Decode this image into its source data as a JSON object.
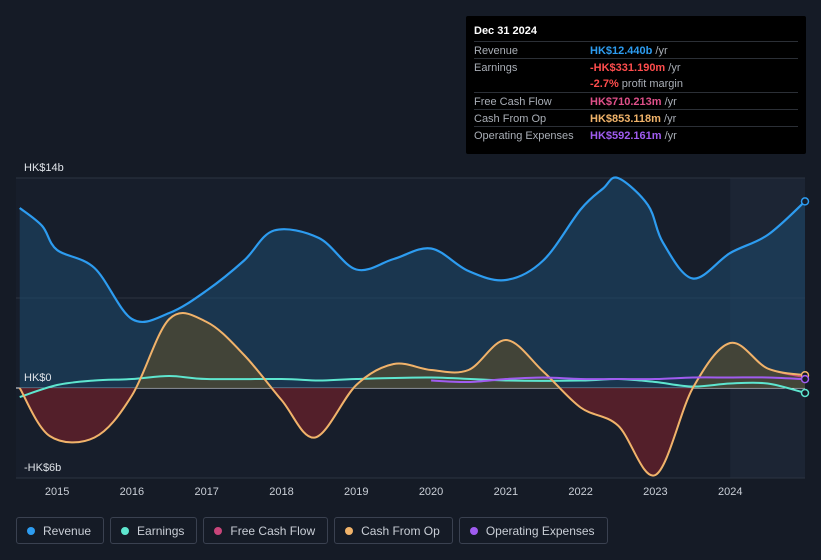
{
  "tooltip": {
    "date": "Dec 31 2024",
    "rows": [
      {
        "label": "Revenue",
        "value": "HK$12.440b",
        "unit": " /yr",
        "color": "#2d9cf0"
      },
      {
        "label": "Earnings",
        "value": "-HK$331.190m",
        "unit": " /yr",
        "color": "#ff4d4d"
      },
      {
        "label": "",
        "value": "-2.7%",
        "unit": " profit margin",
        "color": "#ff4d4d"
      },
      {
        "label": "Free Cash Flow",
        "value": "HK$710.213m",
        "unit": " /yr",
        "color": "#e0508a"
      },
      {
        "label": "Cash From Op",
        "value": "HK$853.118m",
        "unit": " /yr",
        "color": "#f0b36a"
      },
      {
        "label": "Operating Expenses",
        "value": "HK$592.161m",
        "unit": " /yr",
        "color": "#a05cf0"
      }
    ]
  },
  "legend": [
    {
      "label": "Revenue",
      "color": "#2d9cf0"
    },
    {
      "label": "Earnings",
      "color": "#5ee6cf"
    },
    {
      "label": "Free Cash Flow",
      "color": "#c8457a"
    },
    {
      "label": "Cash From Op",
      "color": "#f0b36a"
    },
    {
      "label": "Operating Expenses",
      "color": "#a05cf0"
    }
  ],
  "chart_data": {
    "type": "area",
    "unit": "HK$ billions",
    "ylim": [
      -6,
      14
    ],
    "y_tick_labels": [
      {
        "value": 14,
        "label": "HK$14b"
      },
      {
        "value": 0,
        "label": "HK$0"
      },
      {
        "value": -6,
        "label": "-HK$6b"
      }
    ],
    "xlim": [
      2014.45,
      2025.0
    ],
    "x_ticks": [
      2015,
      2016,
      2017,
      2018,
      2019,
      2020,
      2021,
      2022,
      2023,
      2024
    ],
    "x_tick_labels": [
      "2015",
      "2016",
      "2017",
      "2018",
      "2019",
      "2020",
      "2021",
      "2022",
      "2023",
      "2024"
    ],
    "highlight_from": 2024.0,
    "series": [
      {
        "name": "Revenue",
        "color": "#2d9cf0",
        "fill": true,
        "x": [
          2014.5,
          2014.8,
          2015.0,
          2015.5,
          2016.0,
          2016.5,
          2017.0,
          2017.5,
          2017.9,
          2018.5,
          2019.0,
          2019.5,
          2020.0,
          2020.5,
          2021.0,
          2021.5,
          2022.0,
          2022.3,
          2022.5,
          2022.9,
          2023.1,
          2023.5,
          2024.0,
          2024.5,
          2025.0
        ],
        "y": [
          12.0,
          10.8,
          9.2,
          8.0,
          4.6,
          5.0,
          6.5,
          8.5,
          10.5,
          10.0,
          7.9,
          8.6,
          9.3,
          7.8,
          7.2,
          8.5,
          11.9,
          13.3,
          14.0,
          12.2,
          9.7,
          7.3,
          9.0,
          10.2,
          12.44
        ]
      },
      {
        "name": "Earnings",
        "color": "#5ee6cf",
        "fill": false,
        "x": [
          2014.5,
          2015.0,
          2015.5,
          2016.0,
          2016.5,
          2017.0,
          2018.0,
          2018.5,
          2019.0,
          2020.0,
          2021.0,
          2022.0,
          2022.5,
          2023.0,
          2023.5,
          2024.0,
          2024.5,
          2025.0
        ],
        "y": [
          -0.6,
          0.2,
          0.5,
          0.6,
          0.8,
          0.6,
          0.6,
          0.5,
          0.6,
          0.7,
          0.5,
          0.5,
          0.6,
          0.4,
          0.1,
          0.3,
          0.3,
          -0.33
        ]
      },
      {
        "name": "Free Cash Flow",
        "color": "#c8457a",
        "fill": true,
        "x": [
          2014.5,
          2014.9,
          2015.5,
          2016.0,
          2016.5,
          2017.0,
          2017.5,
          2018.0,
          2018.45,
          2019.0,
          2019.5,
          2020.0,
          2020.5,
          2021.0,
          2021.5,
          2022.0,
          2022.5,
          2023.0,
          2023.5,
          2024.0,
          2024.5,
          2025.0
        ],
        "y": [
          0,
          -3.2,
          -3.3,
          -0.5,
          4.6,
          4.4,
          2.2,
          -0.8,
          -3.3,
          0.2,
          1.6,
          1.2,
          1.2,
          3.2,
          1.1,
          -1.3,
          -2.5,
          -5.8,
          0,
          3.0,
          1.3,
          0.71
        ]
      },
      {
        "name": "Cash From Op",
        "color": "#f0b36a",
        "fill": false,
        "x": [
          2014.5,
          2014.9,
          2015.5,
          2016.0,
          2016.5,
          2017.0,
          2017.5,
          2018.0,
          2018.45,
          2019.0,
          2019.5,
          2020.0,
          2020.5,
          2021.0,
          2021.5,
          2022.0,
          2022.5,
          2023.0,
          2023.5,
          2024.0,
          2024.5,
          2025.0
        ],
        "y": [
          0,
          -3.2,
          -3.3,
          -0.5,
          4.6,
          4.4,
          2.2,
          -0.8,
          -3.3,
          0.2,
          1.6,
          1.2,
          1.2,
          3.2,
          1.1,
          -1.3,
          -2.5,
          -5.8,
          0,
          3.0,
          1.3,
          0.85
        ]
      },
      {
        "name": "Operating Expenses",
        "color": "#a05cf0",
        "fill": false,
        "x": [
          2020.0,
          2020.5,
          2021.0,
          2021.5,
          2022.0,
          2022.5,
          2023.0,
          2023.5,
          2024.0,
          2024.5,
          2025.0
        ],
        "y": [
          0.5,
          0.4,
          0.6,
          0.7,
          0.6,
          0.6,
          0.6,
          0.7,
          0.7,
          0.7,
          0.59
        ]
      }
    ]
  }
}
